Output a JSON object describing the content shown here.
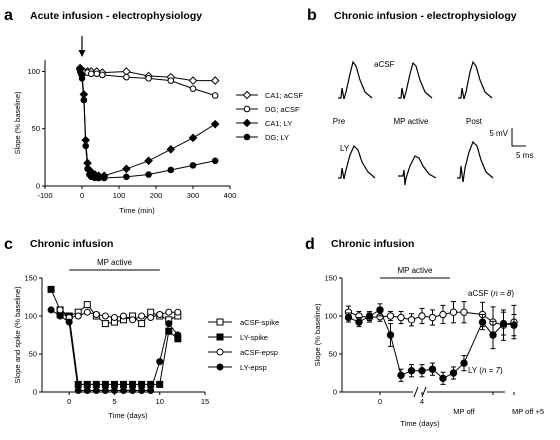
{
  "panels": {
    "a": {
      "letter": "a",
      "title": "Acute infusion  -  electrophysiology"
    },
    "b": {
      "letter": "b",
      "title": "Chronic infusion  -  electrophysiology",
      "row_labels": {
        "acsf": "aCSF",
        "ly": "LY"
      },
      "col_labels": [
        "Pre",
        "MP active",
        "Post"
      ],
      "scale": {
        "mv": "5 mV",
        "ms": "5 ms"
      }
    },
    "c": {
      "letter": "c",
      "title": "Chronic infusion",
      "bar_label": "MP active"
    },
    "d": {
      "letter": "d",
      "title": "Chronic infusion",
      "bar_label": "MP active",
      "annotations": [
        {
          "group": "aCSF",
          "n_text": "n = 8"
        },
        {
          "group": "LY",
          "n_text": "n = 7"
        }
      ],
      "extra_xlabels": [
        "MP off",
        "MP off +5"
      ]
    }
  },
  "chart_data": [
    {
      "panel": "a",
      "type": "line",
      "xlabel": "Time (min)",
      "ylabel": "Slope (% baseline)",
      "xlim": [
        -100,
        400
      ],
      "ylim": [
        0,
        110
      ],
      "xticks": [
        -100,
        0,
        100,
        200,
        300,
        400
      ],
      "yticks": [
        0,
        50,
        100
      ],
      "arrow_at_x": 0,
      "series": [
        {
          "name": "CA1; aCSF",
          "marker": "diamond-open",
          "x": [
            -5,
            0,
            5,
            15,
            25,
            40,
            55,
            120,
            180,
            240,
            300,
            360
          ],
          "y": [
            102,
            101,
            100,
            100,
            100,
            100,
            99,
            100,
            96,
            95,
            92,
            92
          ]
        },
        {
          "name": "DG; aCSF",
          "marker": "circle-open",
          "x": [
            -5,
            0,
            5,
            15,
            25,
            40,
            55,
            120,
            180,
            240,
            300,
            360
          ],
          "y": [
            101,
            100,
            99,
            99,
            98,
            98,
            97,
            95,
            94,
            92,
            85,
            79
          ]
        },
        {
          "name": "CA1; LY",
          "marker": "diamond-filled",
          "x": [
            -5,
            0,
            5,
            10,
            15,
            20,
            25,
            35,
            45,
            60,
            120,
            180,
            240,
            300,
            360
          ],
          "y": [
            103,
            97,
            80,
            40,
            20,
            14,
            12,
            10,
            9,
            9,
            15,
            22,
            32,
            42,
            54
          ]
        },
        {
          "name": "DG; LY",
          "marker": "circle-filled",
          "x": [
            -5,
            0,
            5,
            10,
            15,
            20,
            25,
            35,
            45,
            60,
            120,
            180,
            240,
            300,
            360
          ],
          "y": [
            100,
            94,
            75,
            35,
            15,
            10,
            8,
            7,
            7,
            7,
            8,
            10,
            14,
            18,
            22
          ]
        }
      ]
    },
    {
      "panel": "c",
      "type": "line",
      "xlabel": "Time (days)",
      "ylabel": "Slope and spike (% baseline)",
      "xlim": [
        -3,
        15
      ],
      "ylim": [
        0,
        150
      ],
      "xticks": [
        0,
        5,
        10,
        15
      ],
      "yticks": [
        0,
        50,
        100,
        150
      ],
      "bar_x": [
        0,
        10
      ],
      "series": [
        {
          "name": "aCSF-spike",
          "marker": "square-open",
          "x": [
            -1,
            0,
            1,
            2,
            3,
            4,
            5,
            6,
            7,
            8,
            9,
            10,
            11,
            12
          ],
          "y": [
            102,
            100,
            105,
            115,
            100,
            90,
            92,
            95,
            100,
            90,
            105,
            100,
            95,
            100
          ]
        },
        {
          "name": "LY-spike",
          "marker": "square-filled",
          "x": [
            -2,
            -1,
            0,
            1,
            2,
            3,
            4,
            5,
            6,
            7,
            8,
            9,
            10,
            11,
            12
          ],
          "y": [
            135,
            108,
            100,
            10,
            10,
            10,
            10,
            10,
            10,
            10,
            10,
            10,
            10,
            80,
            70
          ]
        },
        {
          "name": "aCSF-epsp",
          "marker": "circle-open",
          "x": [
            -1,
            0,
            1,
            2,
            3,
            4,
            5,
            6,
            7,
            8,
            9,
            10,
            11,
            12
          ],
          "y": [
            108,
            98,
            100,
            105,
            102,
            100,
            98,
            100,
            95,
            100,
            98,
            102,
            105,
            105
          ]
        },
        {
          "name": "LY-epsp",
          "marker": "circle-filled",
          "x": [
            -2,
            -1,
            0,
            1,
            2,
            3,
            4,
            5,
            6,
            7,
            8,
            9,
            10,
            11,
            12
          ],
          "y": [
            108,
            100,
            92,
            2,
            2,
            2,
            2,
            2,
            2,
            2,
            2,
            2,
            40,
            90,
            75
          ]
        }
      ]
    },
    {
      "panel": "d",
      "type": "line",
      "xlabel": "Time    (days)",
      "ylabel": "Slope (% baseline)",
      "ylim": [
        0,
        150
      ],
      "yticks": [
        0,
        50,
        100,
        150
      ],
      "xticks": [
        "0",
        "4"
      ],
      "series": [
        {
          "name": "aCSF",
          "marker": "circle-open",
          "x": [
            -3,
            -2,
            -1,
            0,
            1,
            2,
            3,
            4,
            5,
            6,
            7,
            8,
            9,
            10,
            11,
            12
          ],
          "y": [
            105,
            100,
            98,
            99,
            100,
            98,
            95,
            100,
            98,
            102,
            105,
            105,
            102,
            92,
            88,
            92
          ],
          "err": [
            8,
            6,
            6,
            6,
            6,
            8,
            8,
            10,
            10,
            12,
            14,
            14,
            16,
            20,
            20,
            22
          ]
        },
        {
          "name": "LY",
          "marker": "circle-filled",
          "x": [
            -3,
            -2,
            -1,
            0,
            1,
            2,
            3,
            4,
            5,
            6,
            7,
            8,
            9,
            10,
            11,
            12
          ],
          "y": [
            98,
            92,
            100,
            108,
            75,
            22,
            28,
            28,
            30,
            18,
            25,
            38,
            92,
            75,
            90,
            88
          ],
          "err": [
            6,
            6,
            6,
            8,
            15,
            8,
            8,
            8,
            8,
            8,
            8,
            10,
            10,
            18,
            15,
            14
          ]
        }
      ]
    }
  ]
}
